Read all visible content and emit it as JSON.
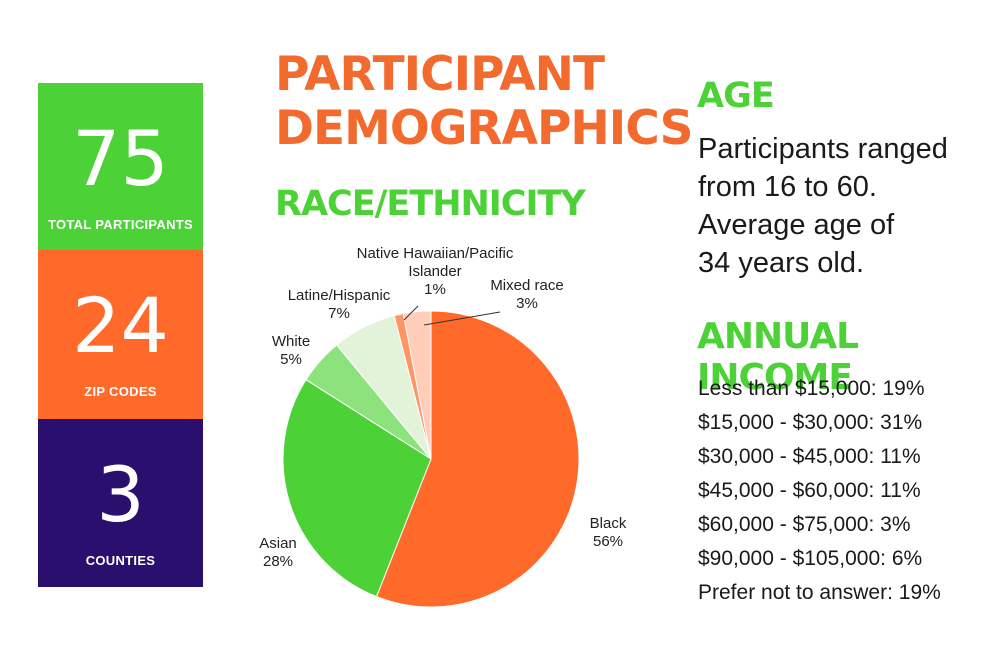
{
  "title_lines": [
    "PARTICIPANT",
    "DEMOGRAPHICS"
  ],
  "stats": [
    {
      "value": "75",
      "label": "TOTAL PARTICIPANTS",
      "color": "#4cd137"
    },
    {
      "value": "24",
      "label": "ZIP CODES",
      "color": "#ff6a2b"
    },
    {
      "value": "3",
      "label": "COUNTIES",
      "color": "#2b0f6e"
    }
  ],
  "colors": {
    "orange": "#f26a2e",
    "green": "#4cd137",
    "purple": "#2b0f6e"
  },
  "race_heading": "RACE/ETHNICITY",
  "age": {
    "heading": "AGE",
    "lines": [
      "Participants ranged",
      "from 16 to 60.",
      "Average age of",
      "34 years old."
    ]
  },
  "income": {
    "heading": "ANNUAL INCOME",
    "items": [
      "Less than $15,000: 19%",
      "$15,000 - $30,000: 31%",
      "$30,000 - $45,000: 11%",
      "$45,000 - $60,000: 11%",
      "$60,000 - $75,000: 3%",
      "$90,000 - $105,000: 6%",
      "Prefer not to answer: 19%"
    ]
  },
  "chart_data": {
    "type": "pie",
    "title": "RACE/ETHNICITY",
    "slices": [
      {
        "label": "Black",
        "value": 56,
        "value_label": "56%",
        "color": "#ff6a2b"
      },
      {
        "label": "Asian",
        "value": 28,
        "value_label": "28%",
        "color": "#4cd137"
      },
      {
        "label": "White",
        "value": 5,
        "value_label": "5%",
        "color": "#8ee27e"
      },
      {
        "label": "Latine/Hispanic",
        "value": 7,
        "value_label": "7%",
        "color": "#e2f3da"
      },
      {
        "label": "Native Hawaiian/Pacific Islander",
        "label_lines": [
          "Native Hawaiian/Pacific",
          "Islander"
        ],
        "value": 1,
        "value_label": "1%",
        "color": "#ff9466"
      },
      {
        "label": "Mixed race",
        "value": 3,
        "value_label": "3%",
        "color": "#ffcdb8"
      }
    ]
  }
}
